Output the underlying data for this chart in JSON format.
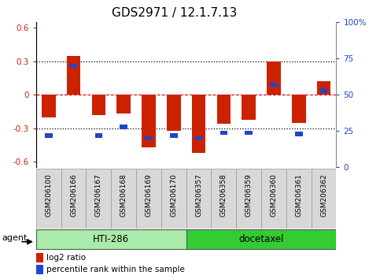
{
  "title": "GDS2971 / 12.1.7.13",
  "samples": [
    "GSM206100",
    "GSM206166",
    "GSM206167",
    "GSM206168",
    "GSM206169",
    "GSM206170",
    "GSM206357",
    "GSM206358",
    "GSM206359",
    "GSM206360",
    "GSM206361",
    "GSM206362"
  ],
  "log2_ratio": [
    -0.2,
    0.35,
    -0.18,
    -0.17,
    -0.47,
    -0.32,
    -0.52,
    -0.26,
    -0.22,
    0.3,
    -0.25,
    0.12
  ],
  "percentile": [
    22,
    70,
    22,
    28,
    20,
    22,
    20,
    24,
    24,
    57,
    23,
    53
  ],
  "groups": [
    {
      "label": "HTI-286",
      "start": 0,
      "end": 6
    },
    {
      "label": "docetaxel",
      "start": 6,
      "end": 12
    }
  ],
  "group_colors": [
    "#aaeaaa",
    "#33cc33"
  ],
  "agent_label": "agent",
  "bar_width": 0.55,
  "red_color": "#cc2200",
  "blue_color": "#2244cc",
  "ylim": [
    -0.65,
    0.65
  ],
  "y2lim": [
    0,
    100
  ],
  "yticks": [
    -0.6,
    -0.3,
    0.0,
    0.3,
    0.6
  ],
  "y2ticks": [
    0,
    25,
    50,
    75,
    100
  ],
  "y2ticklabels": [
    "0",
    "25",
    "50",
    "75",
    "100%"
  ],
  "hlines": [
    -0.3,
    0.0,
    0.3
  ],
  "hline_colors": [
    "black",
    "#cc0000",
    "black"
  ],
  "hline_styles": [
    "dotted",
    "dashed",
    "dotted"
  ],
  "plot_bg": "#ffffff",
  "figure_bg": "#ffffff",
  "title_fontsize": 11,
  "tick_label_fontsize": 7.5,
  "legend_fontsize": 7.5,
  "group_label_fontsize": 8.5,
  "sample_label_fontsize": 6.5,
  "agent_fontsize": 8
}
